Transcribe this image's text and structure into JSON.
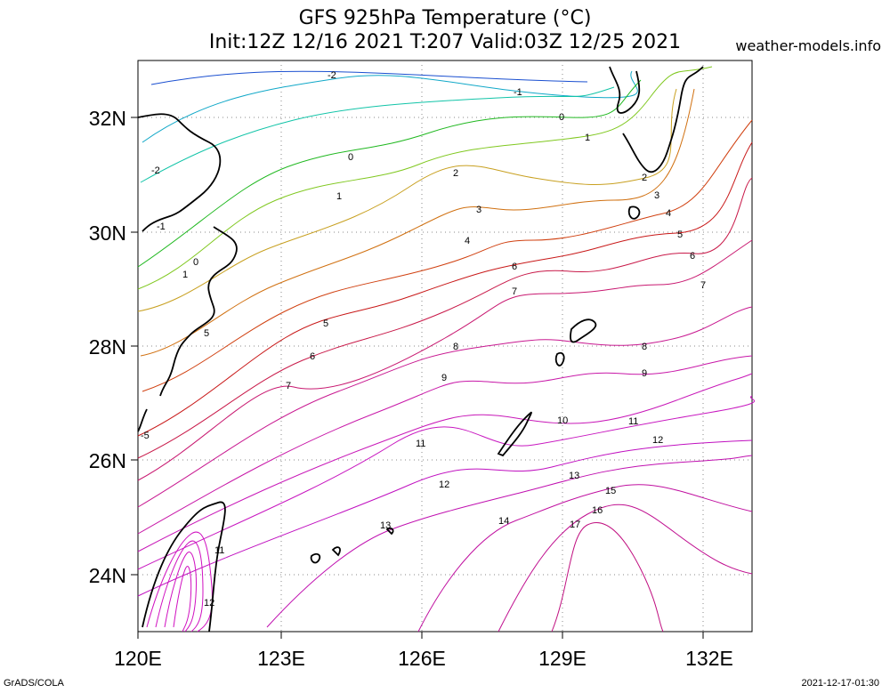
{
  "title_line1": "GFS 925hPa Temperature (°C)",
  "title_line2": "Init:12Z 12/16 2021 T:207 Valid:03Z 12/25 2021",
  "site": "weather-models.info",
  "footer_left": "GrADS/COLA",
  "footer_right": "2021-12-17-01:30",
  "x_ticks": [
    "120E",
    "123E",
    "126E",
    "129E",
    "132E"
  ],
  "y_ticks": [
    "32N",
    "30N",
    "28N",
    "26N",
    "24N"
  ],
  "contour_labels": [
    {
      "text": "-2",
      "color": "#1a9bc8"
    },
    {
      "text": "-1",
      "color": "#000000"
    },
    {
      "text": "0",
      "color": "#000000"
    },
    {
      "text": "1",
      "color": "#000000"
    },
    {
      "text": "-2",
      "color": "#000000"
    },
    {
      "text": "0",
      "color": "#000000"
    },
    {
      "text": "1",
      "color": "#000000"
    },
    {
      "text": "2",
      "color": "#000000"
    },
    {
      "text": "3",
      "color": "#000000"
    },
    {
      "text": "4",
      "color": "#000000"
    },
    {
      "text": "-1",
      "color": "#000000"
    },
    {
      "text": "0",
      "color": "#000000"
    },
    {
      "text": "1",
      "color": "#000000"
    },
    {
      "text": "2",
      "color": "#000000"
    },
    {
      "text": "3",
      "color": "#000000"
    },
    {
      "text": "4",
      "color": "#000000"
    },
    {
      "text": "5",
      "color": "#000000"
    },
    {
      "text": "6",
      "color": "#000000"
    },
    {
      "text": "7",
      "color": "#000000"
    },
    {
      "text": "5",
      "color": "#000000"
    },
    {
      "text": "6",
      "color": "#000000"
    },
    {
      "text": "7",
      "color": "#000000"
    },
    {
      "text": "8",
      "color": "#000000"
    },
    {
      "text": "8",
      "color": "#000000"
    },
    {
      "text": "9",
      "color": "#000000"
    },
    {
      "text": "9",
      "color": "#000000"
    },
    {
      "text": "10",
      "color": "#000000"
    },
    {
      "text": "11",
      "color": "#000000"
    },
    {
      "text": "11",
      "color": "#000000"
    },
    {
      "text": "12",
      "color": "#000000"
    },
    {
      "text": "12",
      "color": "#000000"
    },
    {
      "text": "13",
      "color": "#000000"
    },
    {
      "text": "13",
      "color": "#000000"
    },
    {
      "text": "14",
      "color": "#000000"
    },
    {
      "text": "15",
      "color": "#000000"
    },
    {
      "text": "16",
      "color": "#000000"
    },
    {
      "text": "17",
      "color": "#000000"
    },
    {
      "text": "11",
      "color": "#000000"
    },
    {
      "text": "12",
      "color": "#000000"
    },
    {
      "text": "-5",
      "color": "#000000"
    },
    {
      "text": "5",
      "color": "#000000"
    },
    {
      "text": "6",
      "color": "#000000"
    },
    {
      "text": "7",
      "color": "#000000"
    }
  ]
}
